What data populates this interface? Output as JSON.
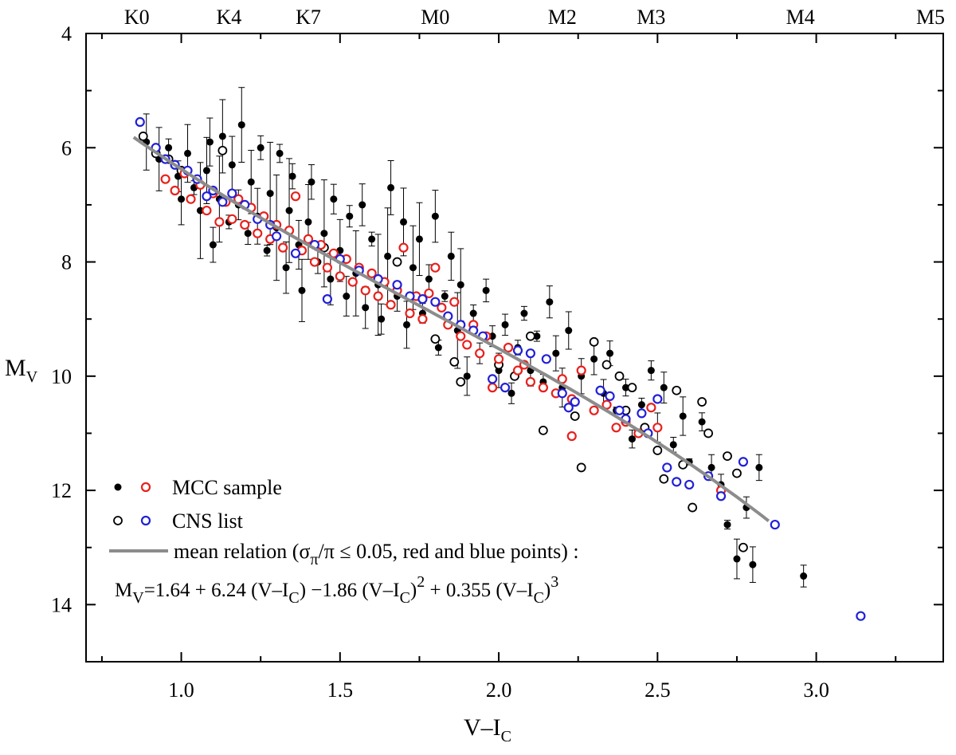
{
  "chart_data": {
    "type": "scatter",
    "title": "",
    "xlabel": {
      "main": "V–I",
      "sub": "C"
    },
    "ylabel": {
      "main": "M",
      "sub": "V"
    },
    "xlim": [
      0.7,
      3.4
    ],
    "ylim": [
      15,
      4
    ],
    "y_inverted": true,
    "grid": false,
    "x_ticks": [
      1.0,
      1.5,
      2.0,
      2.5,
      3.0
    ],
    "x_tick_labels": [
      "1.0",
      "1.5",
      "2.0",
      "2.5",
      "3.0"
    ],
    "y_ticks": [
      4,
      6,
      8,
      10,
      12,
      14
    ],
    "y_tick_labels": [
      "4",
      "6",
      "8",
      "10",
      "12",
      "14"
    ],
    "top_axis": {
      "label_type": "spectral type",
      "ticks": [
        {
          "label": "K0",
          "x": 0.86
        },
        {
          "label": "K4",
          "x": 1.15
        },
        {
          "label": "K7",
          "x": 1.4
        },
        {
          "label": "M0",
          "x": 1.8
        },
        {
          "label": "M2",
          "x": 2.2
        },
        {
          "label": "M3",
          "x": 2.48
        },
        {
          "label": "M4",
          "x": 2.95
        },
        {
          "label": "M5",
          "x": 3.4
        }
      ]
    },
    "legend": {
      "position": "bottom-left",
      "entries": [
        {
          "markers": [
            "filled-black",
            "open-red"
          ],
          "label": "MCC sample"
        },
        {
          "markers": [
            "open-black",
            "open-blue"
          ],
          "label": "CNS list"
        },
        {
          "markers": [
            "gray-line"
          ],
          "label": "mean relation (σπ/π ≤ 0.05, red and blue points) :",
          "label_parts": [
            "mean relation (σ",
            "π",
            "/π ≤ 0.05, red and blue points) :"
          ]
        }
      ]
    },
    "formula": {
      "text": "MV=1.64 + 6.24 (V–IC) −1.86 (V–IC)2 + 0.355 (V–IC)3",
      "parts": {
        "m": "M",
        "v": "V",
        "p1": "=1.64 + 6.24 (V–I",
        "c1": "C",
        "p2": ") −1.86 (V–I",
        "c2": "C",
        "p3": ")",
        "e2": "2",
        "p4": " + 0.355 (V–I",
        "c3": "C",
        "p5": ")",
        "e3": "3"
      }
    },
    "mean_relation": {
      "coefficients": [
        1.64,
        6.24,
        -1.86,
        0.355
      ],
      "x_range": [
        0.85,
        2.85
      ],
      "color": "#8c8c8c"
    },
    "series": [
      {
        "name": "MCC sample (all)",
        "marker": "filled-black",
        "color": "#000000",
        "points": [
          [
            0.89,
            5.9
          ],
          [
            0.93,
            6.2
          ],
          [
            0.96,
            6.0
          ],
          [
            0.99,
            6.5
          ],
          [
            1.0,
            6.9
          ],
          [
            1.02,
            6.1
          ],
          [
            1.04,
            6.7
          ],
          [
            1.06,
            7.1
          ],
          [
            1.08,
            6.4
          ],
          [
            1.09,
            5.9
          ],
          [
            1.1,
            7.7
          ],
          [
            1.12,
            6.9
          ],
          [
            1.13,
            5.8
          ],
          [
            1.15,
            7.3
          ],
          [
            1.16,
            6.3
          ],
          [
            1.18,
            7.0
          ],
          [
            1.19,
            5.6
          ],
          [
            1.21,
            7.5
          ],
          [
            1.22,
            6.6
          ],
          [
            1.24,
            7.2
          ],
          [
            1.25,
            6.0
          ],
          [
            1.27,
            7.8
          ],
          [
            1.28,
            6.8
          ],
          [
            1.3,
            7.4
          ],
          [
            1.31,
            6.1
          ],
          [
            1.33,
            8.1
          ],
          [
            1.34,
            7.1
          ],
          [
            1.35,
            6.5
          ],
          [
            1.37,
            7.7
          ],
          [
            1.38,
            8.5
          ],
          [
            1.4,
            7.3
          ],
          [
            1.41,
            6.6
          ],
          [
            1.43,
            8.0
          ],
          [
            1.45,
            7.5
          ],
          [
            1.47,
            8.3
          ],
          [
            1.48,
            6.9
          ],
          [
            1.5,
            7.8
          ],
          [
            1.52,
            8.6
          ],
          [
            1.53,
            7.2
          ],
          [
            1.55,
            8.2
          ],
          [
            1.57,
            7.0
          ],
          [
            1.58,
            8.8
          ],
          [
            1.6,
            7.6
          ],
          [
            1.62,
            8.4
          ],
          [
            1.63,
            9.0
          ],
          [
            1.65,
            7.9
          ],
          [
            1.66,
            6.7
          ],
          [
            1.68,
            8.6
          ],
          [
            1.7,
            7.3
          ],
          [
            1.71,
            9.1
          ],
          [
            1.73,
            8.1
          ],
          [
            1.75,
            7.6
          ],
          [
            1.76,
            8.9
          ],
          [
            1.78,
            8.3
          ],
          [
            1.8,
            7.2
          ],
          [
            1.81,
            9.5
          ],
          [
            1.83,
            8.6
          ],
          [
            1.85,
            7.9
          ],
          [
            1.87,
            9.2
          ],
          [
            1.88,
            8.4
          ],
          [
            1.9,
            10.0
          ],
          [
            1.92,
            8.9
          ],
          [
            1.94,
            9.6
          ],
          [
            1.96,
            8.5
          ],
          [
            1.98,
            9.3
          ],
          [
            2.0,
            9.9
          ],
          [
            2.02,
            9.1
          ],
          [
            2.04,
            10.3
          ],
          [
            2.06,
            9.5
          ],
          [
            2.08,
            8.9
          ],
          [
            2.1,
            9.9
          ],
          [
            2.12,
            9.3
          ],
          [
            2.14,
            10.1
          ],
          [
            2.16,
            8.7
          ],
          [
            2.18,
            9.6
          ],
          [
            2.2,
            10.2
          ],
          [
            2.22,
            9.2
          ],
          [
            2.26,
            10.0
          ],
          [
            2.3,
            9.7
          ],
          [
            2.33,
            10.3
          ],
          [
            2.35,
            9.6
          ],
          [
            2.37,
            10.6
          ],
          [
            2.4,
            10.2
          ],
          [
            2.42,
            11.1
          ],
          [
            2.45,
            10.5
          ],
          [
            2.48,
            9.9
          ],
          [
            2.5,
            10.9
          ],
          [
            2.52,
            10.2
          ],
          [
            2.55,
            11.2
          ],
          [
            2.58,
            10.7
          ],
          [
            2.6,
            11.5
          ],
          [
            2.64,
            10.8
          ],
          [
            2.67,
            11.6
          ],
          [
            2.7,
            11.9
          ],
          [
            2.72,
            12.6
          ],
          [
            2.75,
            13.2
          ],
          [
            2.78,
            12.3
          ],
          [
            2.8,
            13.3
          ],
          [
            2.82,
            11.6
          ],
          [
            2.96,
            13.5
          ]
        ]
      },
      {
        "name": "MCC sample (σπ/π ≤ 0.05)",
        "marker": "open-red",
        "color": "#e8201c",
        "points": [
          [
            0.95,
            6.55
          ],
          [
            0.98,
            6.75
          ],
          [
            1.01,
            6.45
          ],
          [
            1.03,
            6.9
          ],
          [
            1.06,
            6.65
          ],
          [
            1.08,
            7.1
          ],
          [
            1.1,
            6.8
          ],
          [
            1.12,
            7.3
          ],
          [
            1.14,
            6.95
          ],
          [
            1.16,
            7.25
          ],
          [
            1.18,
            6.9
          ],
          [
            1.2,
            7.35
          ],
          [
            1.22,
            7.05
          ],
          [
            1.24,
            7.5
          ],
          [
            1.26,
            7.2
          ],
          [
            1.28,
            7.6
          ],
          [
            1.3,
            7.35
          ],
          [
            1.32,
            7.75
          ],
          [
            1.34,
            7.45
          ],
          [
            1.36,
            6.85
          ],
          [
            1.38,
            7.8
          ],
          [
            1.4,
            7.6
          ],
          [
            1.42,
            8.0
          ],
          [
            1.44,
            7.7
          ],
          [
            1.46,
            8.1
          ],
          [
            1.48,
            7.85
          ],
          [
            1.5,
            8.25
          ],
          [
            1.52,
            7.95
          ],
          [
            1.54,
            8.35
          ],
          [
            1.56,
            8.1
          ],
          [
            1.58,
            8.5
          ],
          [
            1.6,
            8.2
          ],
          [
            1.62,
            8.6
          ],
          [
            1.64,
            8.35
          ],
          [
            1.66,
            8.75
          ],
          [
            1.68,
            8.5
          ],
          [
            1.7,
            7.75
          ],
          [
            1.72,
            8.9
          ],
          [
            1.74,
            8.6
          ],
          [
            1.76,
            9.0
          ],
          [
            1.78,
            8.55
          ],
          [
            1.8,
            8.1
          ],
          [
            1.82,
            8.8
          ],
          [
            1.84,
            9.1
          ],
          [
            1.86,
            8.7
          ],
          [
            1.88,
            9.3
          ],
          [
            1.9,
            9.45
          ],
          [
            1.92,
            9.1
          ],
          [
            1.94,
            9.6
          ],
          [
            1.96,
            9.3
          ],
          [
            1.98,
            10.2
          ],
          [
            2.0,
            9.7
          ],
          [
            2.03,
            9.5
          ],
          [
            2.06,
            9.9
          ],
          [
            2.08,
            9.8
          ],
          [
            2.1,
            10.1
          ],
          [
            2.14,
            10.2
          ],
          [
            2.18,
            10.3
          ],
          [
            2.2,
            10.05
          ],
          [
            2.23,
            10.4
          ],
          [
            2.26,
            9.9
          ],
          [
            2.3,
            10.6
          ],
          [
            2.34,
            10.5
          ],
          [
            2.37,
            10.9
          ],
          [
            2.4,
            10.8
          ],
          [
            2.44,
            11.0
          ],
          [
            2.48,
            10.55
          ],
          [
            2.5,
            10.9
          ],
          [
            2.23,
            11.05
          ],
          [
            2.7,
            12.0
          ]
        ]
      },
      {
        "name": "CNS list (all)",
        "marker": "open-black",
        "color": "#000000",
        "points": [
          [
            0.88,
            5.8
          ],
          [
            0.92,
            6.1
          ],
          [
            0.96,
            6.2
          ],
          [
            1.0,
            6.4
          ],
          [
            1.13,
            6.05
          ],
          [
            1.45,
            7.75
          ],
          [
            1.68,
            8.0
          ],
          [
            1.8,
            9.35
          ],
          [
            1.86,
            9.75
          ],
          [
            1.88,
            10.1
          ],
          [
            2.0,
            9.8
          ],
          [
            2.05,
            10.0
          ],
          [
            2.1,
            9.3
          ],
          [
            2.14,
            10.2
          ],
          [
            2.18,
            10.3
          ],
          [
            2.24,
            10.7
          ],
          [
            2.26,
            11.6
          ],
          [
            2.3,
            9.4
          ],
          [
            2.34,
            9.8
          ],
          [
            2.38,
            10.0
          ],
          [
            2.4,
            10.6
          ],
          [
            2.42,
            10.2
          ],
          [
            2.46,
            10.9
          ],
          [
            2.5,
            11.3
          ],
          [
            2.52,
            11.8
          ],
          [
            2.56,
            10.25
          ],
          [
            2.58,
            11.55
          ],
          [
            2.61,
            12.3
          ],
          [
            2.64,
            10.45
          ],
          [
            2.66,
            11.0
          ],
          [
            2.72,
            11.4
          ],
          [
            2.75,
            11.7
          ],
          [
            2.77,
            13.0
          ],
          [
            2.14,
            10.95
          ]
        ]
      },
      {
        "name": "CNS list (σπ/π ≤ 0.05)",
        "marker": "open-blue",
        "color": "#2020d8",
        "points": [
          [
            0.87,
            5.55
          ],
          [
            0.92,
            6.0
          ],
          [
            0.95,
            6.2
          ],
          [
            0.98,
            6.3
          ],
          [
            1.02,
            6.4
          ],
          [
            1.05,
            6.55
          ],
          [
            1.08,
            6.85
          ],
          [
            1.1,
            6.75
          ],
          [
            1.13,
            6.95
          ],
          [
            1.16,
            6.8
          ],
          [
            1.2,
            7.0
          ],
          [
            1.24,
            7.25
          ],
          [
            1.28,
            7.35
          ],
          [
            1.3,
            7.55
          ],
          [
            1.36,
            7.85
          ],
          [
            1.42,
            7.7
          ],
          [
            1.46,
            8.65
          ],
          [
            1.5,
            7.95
          ],
          [
            1.56,
            8.15
          ],
          [
            1.62,
            8.3
          ],
          [
            1.68,
            8.4
          ],
          [
            1.72,
            8.6
          ],
          [
            1.76,
            8.65
          ],
          [
            1.8,
            8.7
          ],
          [
            1.84,
            8.95
          ],
          [
            1.88,
            9.1
          ],
          [
            1.92,
            9.2
          ],
          [
            1.95,
            9.3
          ],
          [
            1.98,
            10.05
          ],
          [
            2.02,
            10.2
          ],
          [
            2.06,
            9.55
          ],
          [
            2.1,
            9.6
          ],
          [
            2.15,
            9.7
          ],
          [
            2.2,
            10.3
          ],
          [
            2.22,
            10.55
          ],
          [
            2.24,
            10.45
          ],
          [
            2.32,
            10.25
          ],
          [
            2.35,
            10.35
          ],
          [
            2.38,
            10.6
          ],
          [
            2.4,
            10.75
          ],
          [
            2.45,
            10.65
          ],
          [
            2.47,
            11.0
          ],
          [
            2.5,
            10.4
          ],
          [
            2.53,
            11.6
          ],
          [
            2.56,
            11.85
          ],
          [
            2.6,
            11.9
          ],
          [
            2.66,
            11.75
          ],
          [
            2.7,
            12.1
          ],
          [
            2.77,
            11.5
          ],
          [
            2.87,
            12.6
          ],
          [
            3.14,
            14.2
          ]
        ]
      }
    ]
  }
}
